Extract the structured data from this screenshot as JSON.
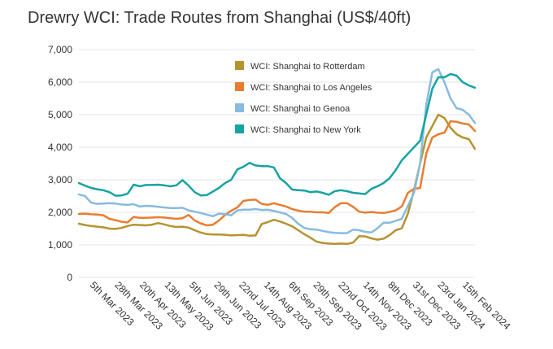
{
  "chart_data": {
    "type": "line",
    "title": "Drewry WCI: Trade Routes from Shanghai (US$/40ft)",
    "xlabel": "",
    "ylabel": "",
    "ylim": [
      0,
      7000
    ],
    "y_ticks": [
      {
        "value": 0,
        "label": "0"
      },
      {
        "value": 1000,
        "label": "1,000"
      },
      {
        "value": 2000,
        "label": "2,000"
      },
      {
        "value": 3000,
        "label": "3,000"
      },
      {
        "value": 4000,
        "label": "4,000"
      },
      {
        "value": 5000,
        "label": "5,000"
      },
      {
        "value": 6000,
        "label": "6,000"
      },
      {
        "value": 7000,
        "label": "7,000"
      }
    ],
    "x_tick_labels": [
      "5th Mar 2023",
      "28th Mar 2023",
      "20th Apr 2023",
      "13th May 2023",
      "5th Jun 2023",
      "29th Jun 2023",
      "22nd Jul 2023",
      "14th Aug 2023",
      "6th Sep 2023",
      "29th Sep 2023",
      "22nd Oct 2023",
      "14th Nov 2023",
      "8th Dec 2023",
      "31st Dec 2023",
      "23rd Jan 2024",
      "15th Feb 2024"
    ],
    "grid": true,
    "legend_position": "top-right",
    "series": [
      {
        "name": "WCI: Shanghai to Rotterdam",
        "color": "#b5932f",
        "values": [
          1650,
          1610,
          1580,
          1560,
          1540,
          1500,
          1490,
          1520,
          1580,
          1620,
          1610,
          1600,
          1620,
          1670,
          1630,
          1580,
          1550,
          1560,
          1530,
          1450,
          1380,
          1330,
          1320,
          1320,
          1310,
          1290,
          1300,
          1310,
          1280,
          1290,
          1640,
          1700,
          1770,
          1720,
          1650,
          1570,
          1450,
          1330,
          1220,
          1100,
          1060,
          1040,
          1030,
          1040,
          1030,
          1070,
          1270,
          1260,
          1200,
          1160,
          1190,
          1300,
          1450,
          1510,
          1960,
          2690,
          3500,
          4300,
          4650,
          5000,
          4900,
          4600,
          4400,
          4300,
          4250,
          3950
        ]
      },
      {
        "name": "WCI: Shanghai to Los Angeles",
        "color": "#e87d31",
        "values": [
          1950,
          1960,
          1940,
          1930,
          1910,
          1800,
          1760,
          1710,
          1690,
          1860,
          1830,
          1830,
          1840,
          1850,
          1840,
          1820,
          1800,
          1820,
          1920,
          1750,
          1660,
          1600,
          1620,
          1750,
          1920,
          2050,
          2150,
          2350,
          2380,
          2390,
          2260,
          2230,
          2280,
          2230,
          2180,
          2100,
          2050,
          2020,
          2020,
          2000,
          2000,
          1980,
          2160,
          2280,
          2280,
          2170,
          2020,
          1990,
          2010,
          1990,
          1980,
          2010,
          2060,
          2180,
          2600,
          2720,
          2750,
          3800,
          4300,
          4400,
          4450,
          4800,
          4780,
          4730,
          4700,
          4500
        ]
      },
      {
        "name": "WCI: Shanghai to Genoa",
        "color": "#87bbe0",
        "values": [
          2550,
          2500,
          2300,
          2260,
          2270,
          2280,
          2270,
          2240,
          2230,
          2250,
          2180,
          2200,
          2190,
          2170,
          2150,
          2130,
          2130,
          2140,
          2060,
          2020,
          1980,
          1930,
          1880,
          1960,
          1940,
          1910,
          2060,
          2080,
          2080,
          2100,
          2070,
          2080,
          2040,
          2000,
          1950,
          1830,
          1650,
          1520,
          1480,
          1470,
          1430,
          1390,
          1370,
          1360,
          1360,
          1470,
          1450,
          1400,
          1380,
          1510,
          1680,
          1680,
          1740,
          1800,
          2200,
          2600,
          3500,
          5300,
          6300,
          6400,
          6000,
          5500,
          5200,
          5150,
          5000,
          4750
        ]
      },
      {
        "name": "WCI: Shanghai to New York",
        "color": "#17a3a3",
        "values": [
          2900,
          2820,
          2750,
          2710,
          2680,
          2620,
          2510,
          2520,
          2570,
          2850,
          2800,
          2840,
          2840,
          2850,
          2830,
          2800,
          2830,
          2990,
          2820,
          2620,
          2520,
          2530,
          2640,
          2750,
          2900,
          3000,
          3320,
          3400,
          3520,
          3440,
          3420,
          3420,
          3380,
          3050,
          2900,
          2700,
          2680,
          2670,
          2620,
          2640,
          2600,
          2540,
          2650,
          2680,
          2650,
          2600,
          2580,
          2560,
          2720,
          2800,
          2900,
          3050,
          3300,
          3600,
          3800,
          4000,
          4200,
          5000,
          5800,
          6150,
          6150,
          6250,
          6200,
          6000,
          5900,
          5830
        ]
      }
    ]
  }
}
